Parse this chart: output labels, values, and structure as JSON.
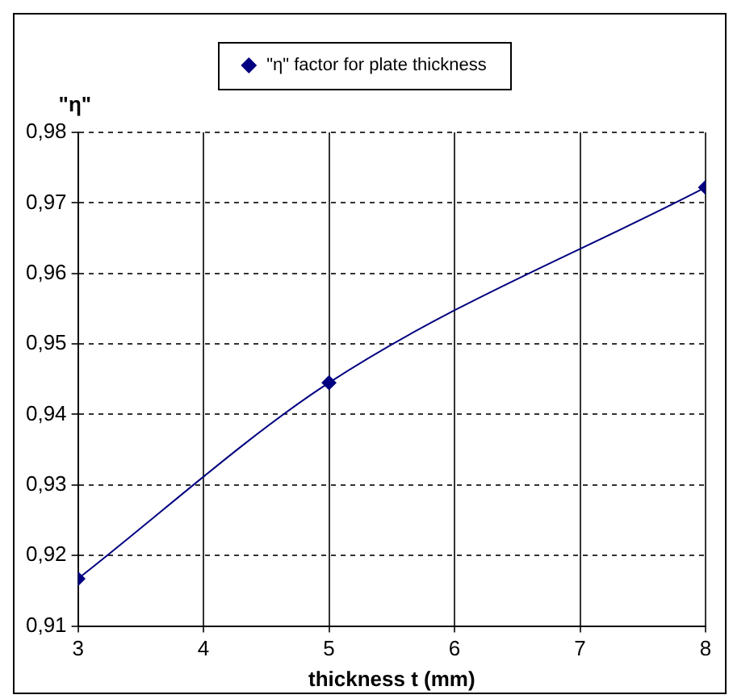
{
  "chart_data": {
    "type": "line",
    "xlabel": "thickness t (mm)",
    "ylabel": "\"η\"",
    "x": [
      3,
      5,
      8
    ],
    "series": [
      {
        "name": "\"η\" factor for plate thickness",
        "color": "#000080",
        "values": [
          0.9167,
          0.9445,
          0.9722
        ]
      }
    ],
    "xlim": [
      3,
      8
    ],
    "xticks": [
      3,
      4,
      5,
      6,
      7,
      8
    ],
    "ylim": [
      0.91,
      0.98
    ],
    "yticks": [
      {
        "value": 0.91,
        "label": "0,91"
      },
      {
        "value": 0.92,
        "label": "0,92"
      },
      {
        "value": 0.93,
        "label": "0,93"
      },
      {
        "value": 0.94,
        "label": "0,94"
      },
      {
        "value": 0.95,
        "label": "0,95"
      },
      {
        "value": 0.96,
        "label": "0,96"
      },
      {
        "value": 0.97,
        "label": "0,97"
      },
      {
        "value": 0.98,
        "label": "0,98"
      }
    ],
    "grid": true,
    "legend": "top",
    "marker": "diamond",
    "line_style": "solid"
  }
}
